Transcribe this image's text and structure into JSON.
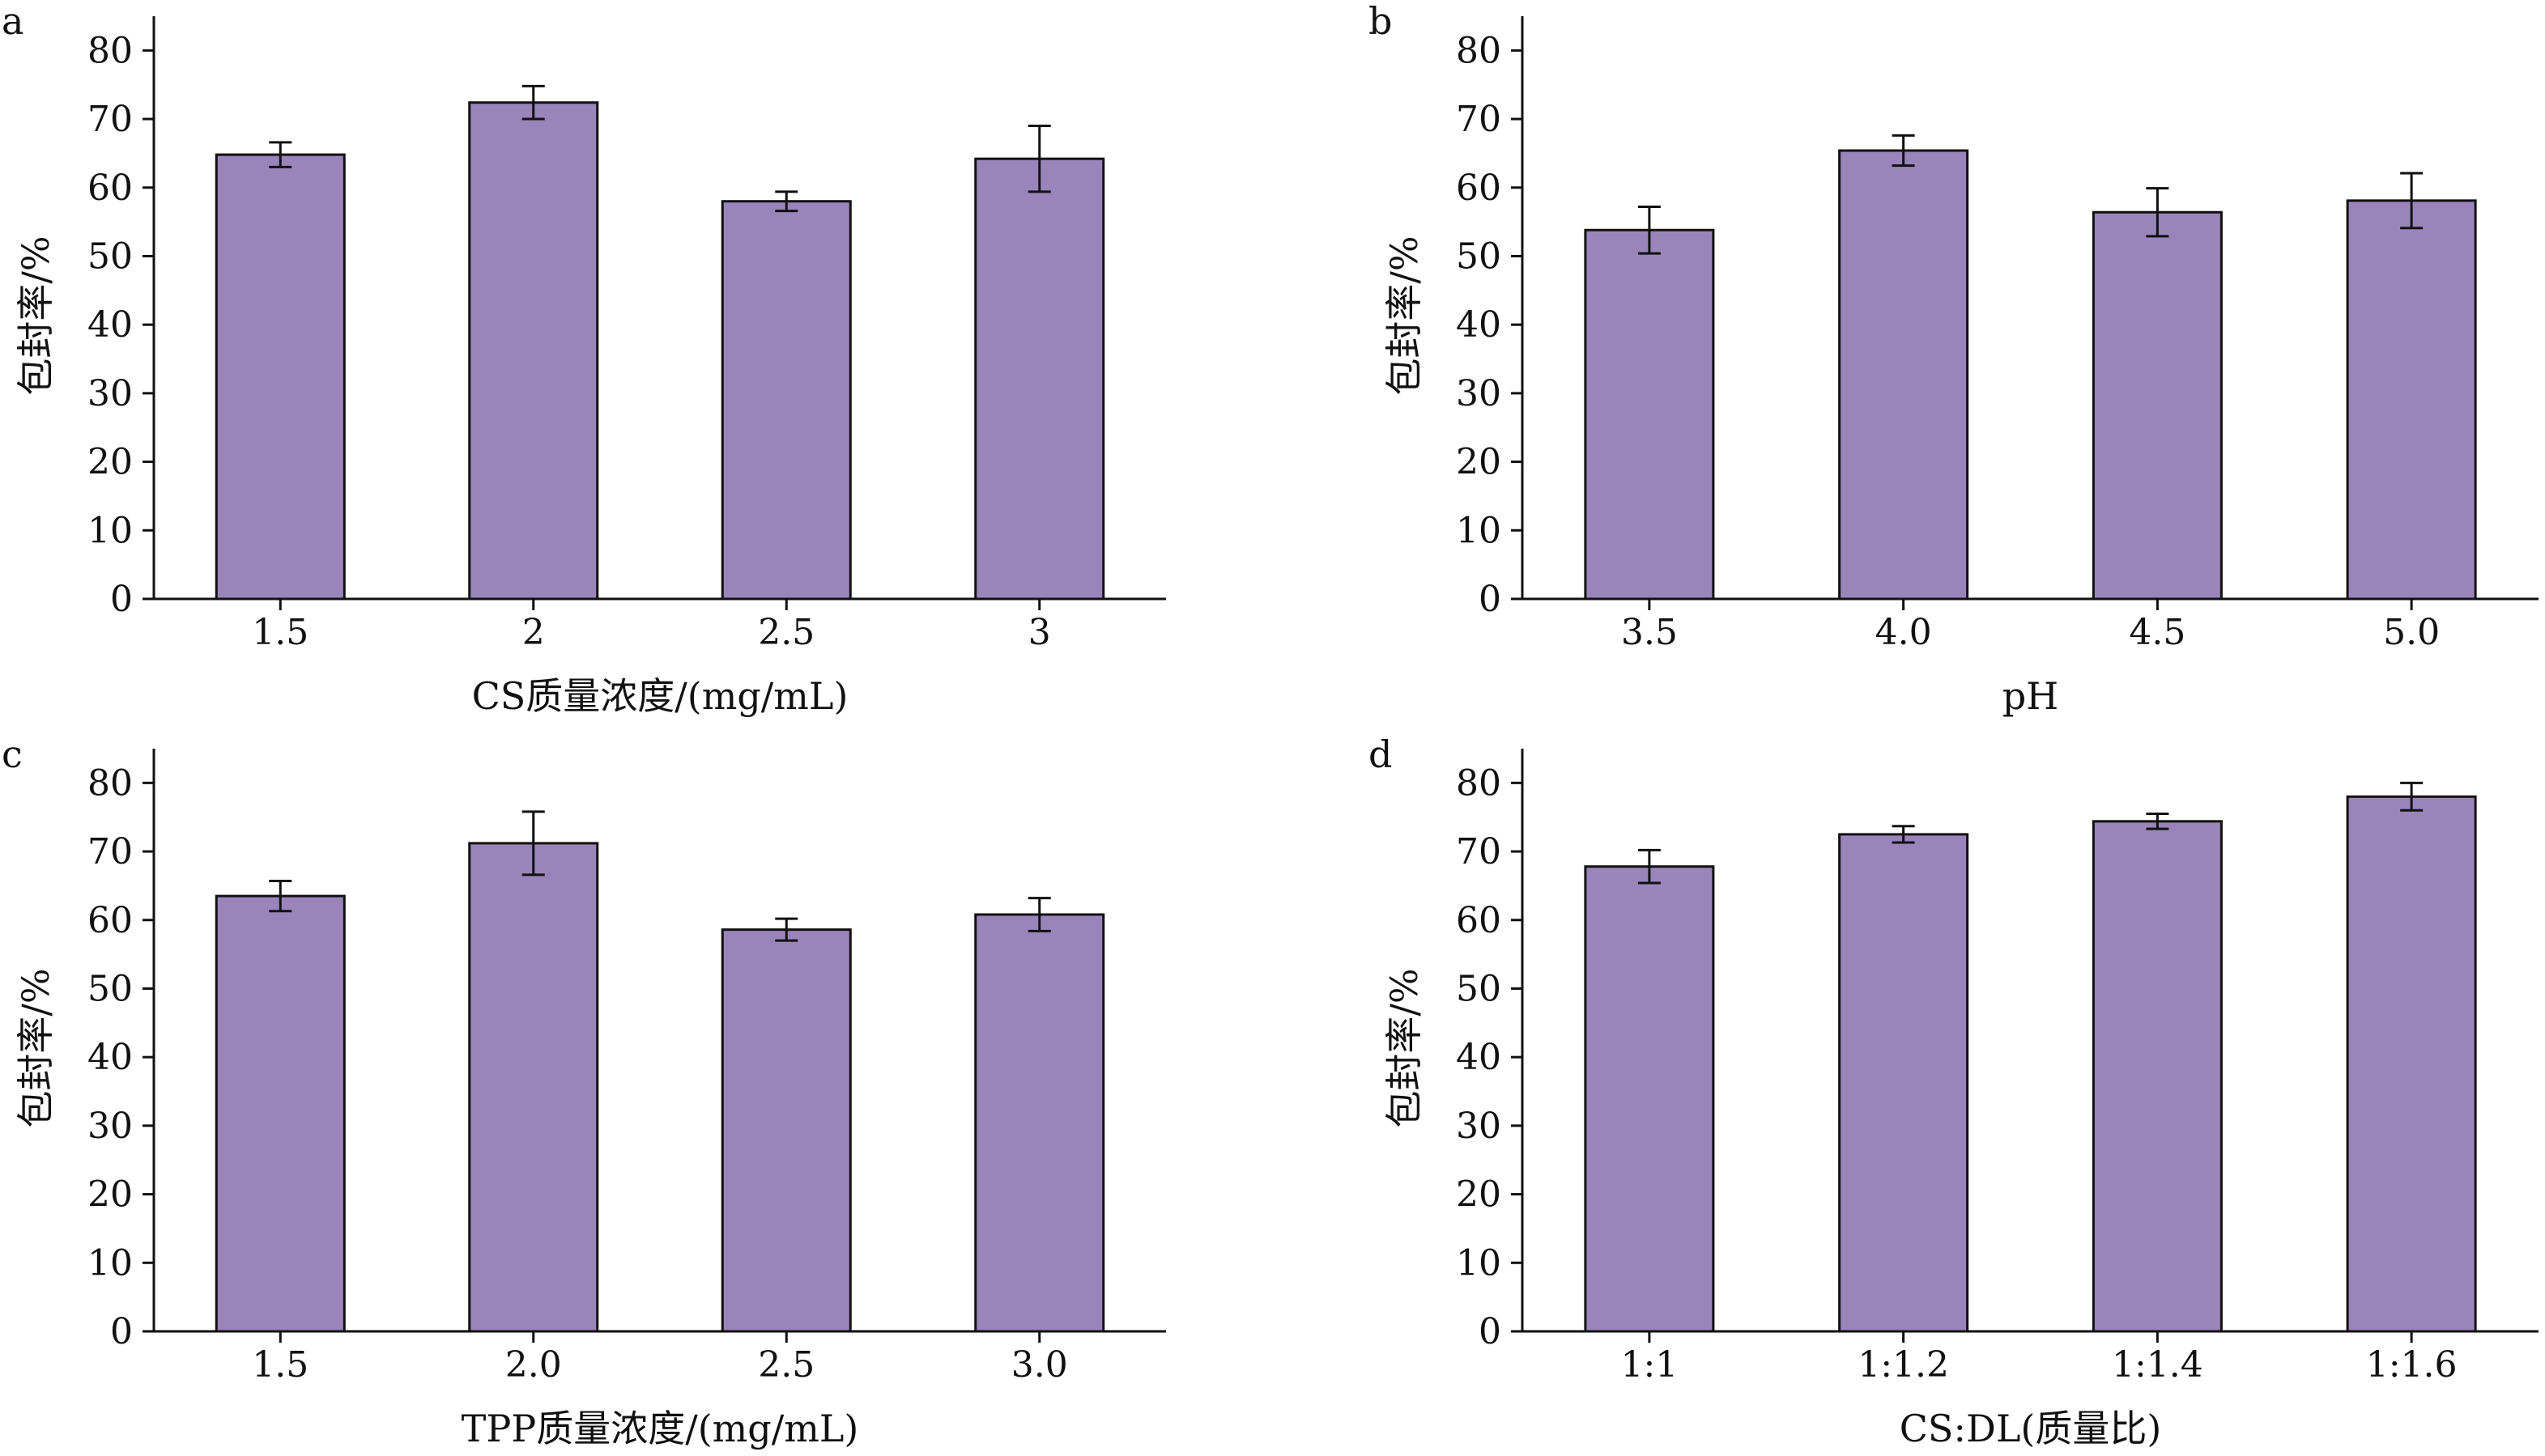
{
  "colors": {
    "bar_fill": "#9a85bb",
    "axis": "#111111"
  },
  "chart_data": [
    {
      "panel_label": "a",
      "type": "bar",
      "title": "",
      "categories": [
        "1.5",
        "2",
        "2.5",
        "3"
      ],
      "values": [
        64.8,
        72.4,
        58.0,
        64.2
      ],
      "errors": [
        1.8,
        2.4,
        1.4,
        4.8
      ],
      "xlabel": "CS质量浓度/(mg/mL)",
      "ylabel": "包封率/%",
      "ylim": [
        0,
        85
      ],
      "yticks": [
        "0",
        "10",
        "20",
        "30",
        "40",
        "50",
        "60",
        "70",
        "80"
      ],
      "grid": false
    },
    {
      "panel_label": "b",
      "type": "bar",
      "title": "",
      "categories": [
        "3.5",
        "4.0",
        "4.5",
        "5.0"
      ],
      "values": [
        53.8,
        65.4,
        56.4,
        58.1
      ],
      "errors": [
        3.4,
        2.2,
        3.5,
        4.0
      ],
      "xlabel": "pH",
      "ylabel": "包封率/%",
      "ylim": [
        0,
        85
      ],
      "yticks": [
        "0",
        "10",
        "20",
        "30",
        "40",
        "50",
        "60",
        "70",
        "80"
      ],
      "grid": false
    },
    {
      "panel_label": "c",
      "type": "bar",
      "title": "",
      "categories": [
        "1.5",
        "2.0",
        "2.5",
        "3.0"
      ],
      "values": [
        63.5,
        71.2,
        58.6,
        60.8
      ],
      "errors": [
        2.2,
        4.6,
        1.6,
        2.4
      ],
      "xlabel": "TPP质量浓度/(mg/mL)",
      "ylabel": "包封率/%",
      "ylim": [
        0,
        85
      ],
      "yticks": [
        "0",
        "10",
        "20",
        "30",
        "40",
        "50",
        "60",
        "70",
        "80"
      ],
      "grid": false
    },
    {
      "panel_label": "d",
      "type": "bar",
      "title": "",
      "categories": [
        "1:1",
        "1:1.2",
        "1:1.4",
        "1:1.6"
      ],
      "values": [
        67.8,
        72.5,
        74.4,
        78.0
      ],
      "errors": [
        2.4,
        1.2,
        1.1,
        2.0
      ],
      "xlabel": "CS:DL(质量比)",
      "ylabel": "包封率/%",
      "ylim": [
        0,
        85
      ],
      "yticks": [
        "0",
        "10",
        "20",
        "30",
        "40",
        "50",
        "60",
        "70",
        "80"
      ],
      "grid": false
    }
  ]
}
